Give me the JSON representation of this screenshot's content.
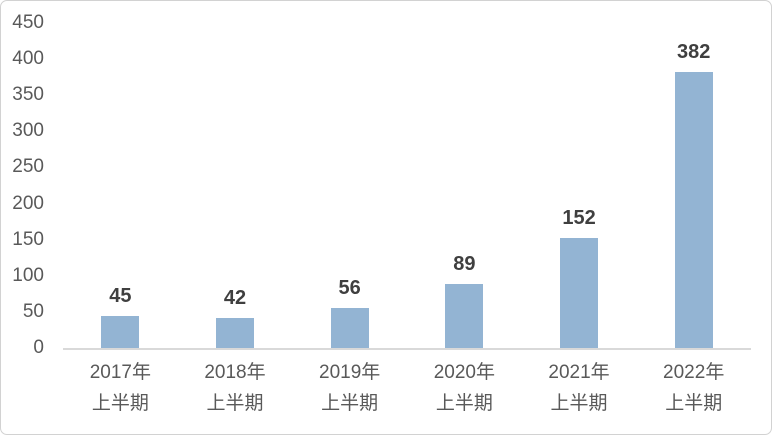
{
  "chart_data": {
    "type": "bar",
    "title": "",
    "xlabel": "",
    "ylabel": "",
    "categories": [
      {
        "line1": "2017年",
        "line2": "上半期"
      },
      {
        "line1": "2018年",
        "line2": "上半期"
      },
      {
        "line1": "2019年",
        "line2": "上半期"
      },
      {
        "line1": "2020年",
        "line2": "上半期"
      },
      {
        "line1": "2021年",
        "line2": "上半期"
      },
      {
        "line1": "2022年",
        "line2": "上半期"
      }
    ],
    "values": [
      45,
      42,
      56,
      89,
      152,
      382
    ],
    "data_labels": [
      "45",
      "42",
      "56",
      "89",
      "152",
      "382"
    ],
    "ylim": [
      0,
      450
    ],
    "y_ticks": [
      450,
      400,
      350,
      300,
      250,
      200,
      150,
      100,
      50,
      0
    ],
    "grid": false,
    "legend_position": "none",
    "colors": {
      "bar_fill": "#93b4d3",
      "axis_text": "#595959",
      "data_label_text": "#3f3f3f",
      "axis_line": "#d9d9d9",
      "chart_border": "#d2d2d2",
      "background": "#ffffff"
    }
  }
}
